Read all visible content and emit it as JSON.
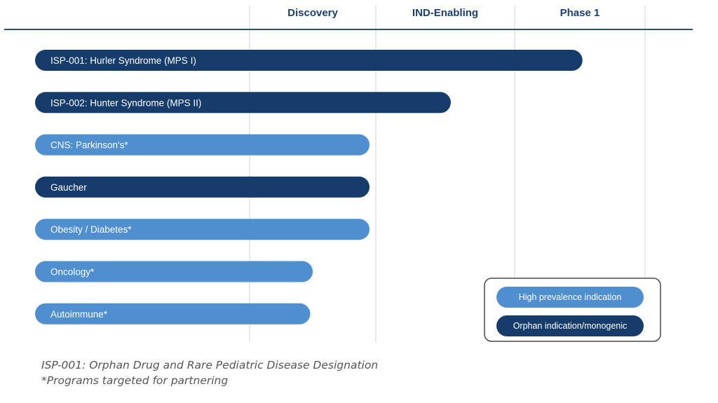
{
  "chart_data": {
    "type": "bar",
    "title": "",
    "stages": [
      "Discovery",
      "IND-Enabling",
      "Phase 1"
    ],
    "programs": [
      {
        "name": "ISP-001: Hurler Syndrome (MPS I)",
        "progress": 2.52,
        "category": "orphan"
      },
      {
        "name": "ISP-002: Hunter Syndrome (MPS II)",
        "progress": 1.54,
        "category": "orphan"
      },
      {
        "name": "CNS: Parkinson's*",
        "progress": 0.95,
        "category": "high"
      },
      {
        "name": "Gaucher",
        "progress": 0.95,
        "category": "orphan"
      },
      {
        "name": "Obesity / Diabetes*",
        "progress": 0.95,
        "category": "high"
      },
      {
        "name": "Oncology*",
        "progress": 0.5,
        "category": "high"
      },
      {
        "name": "Autoimmune*",
        "progress": 0.48,
        "category": "high"
      }
    ],
    "xlim": [
      0,
      3
    ],
    "legend": {
      "position": "bottom-right",
      "items": [
        {
          "key": "high",
          "label": "High prevalence indication"
        },
        {
          "key": "orphan",
          "label": "Orphan indication/monogenic"
        }
      ]
    }
  },
  "colors": {
    "high": "#4f8fcf",
    "orphan": "#153c6b",
    "header_text": "#1b3f6e",
    "header_rule": "#2d4f7c",
    "grid": "#d6d6d6",
    "legend_border": "#4a4a4a"
  },
  "footnotes": {
    "line1": "ISP-001: Orphan Drug and Rare Pediatric Disease Designation",
    "line2": "*Programs targeted for partnering"
  }
}
